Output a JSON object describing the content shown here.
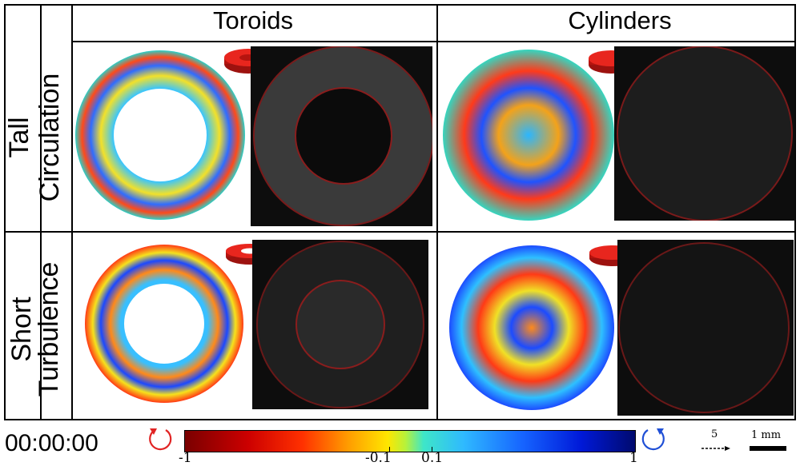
{
  "columns": {
    "toroids": "Toroids",
    "cylinders": "Cylinders"
  },
  "rows": {
    "tall": {
      "label": "Tall",
      "sub": "Circulation"
    },
    "short": {
      "label": "Short",
      "sub": "Turbulence"
    }
  },
  "timer": "00:00:00",
  "colorbar": {
    "ticks": [
      "-1",
      "-0.1",
      "0.1",
      "1"
    ],
    "tick_values": [
      -1,
      -0.1,
      0.1,
      1
    ]
  },
  "scale": {
    "arrow_label": "5",
    "bar_label": "1 mm"
  },
  "colors": {
    "red_ring": "#e8261e",
    "dark_red_outline": "#8a1d1d",
    "rotation_red": "#e12424",
    "rotation_blue": "#1f4fd6"
  }
}
